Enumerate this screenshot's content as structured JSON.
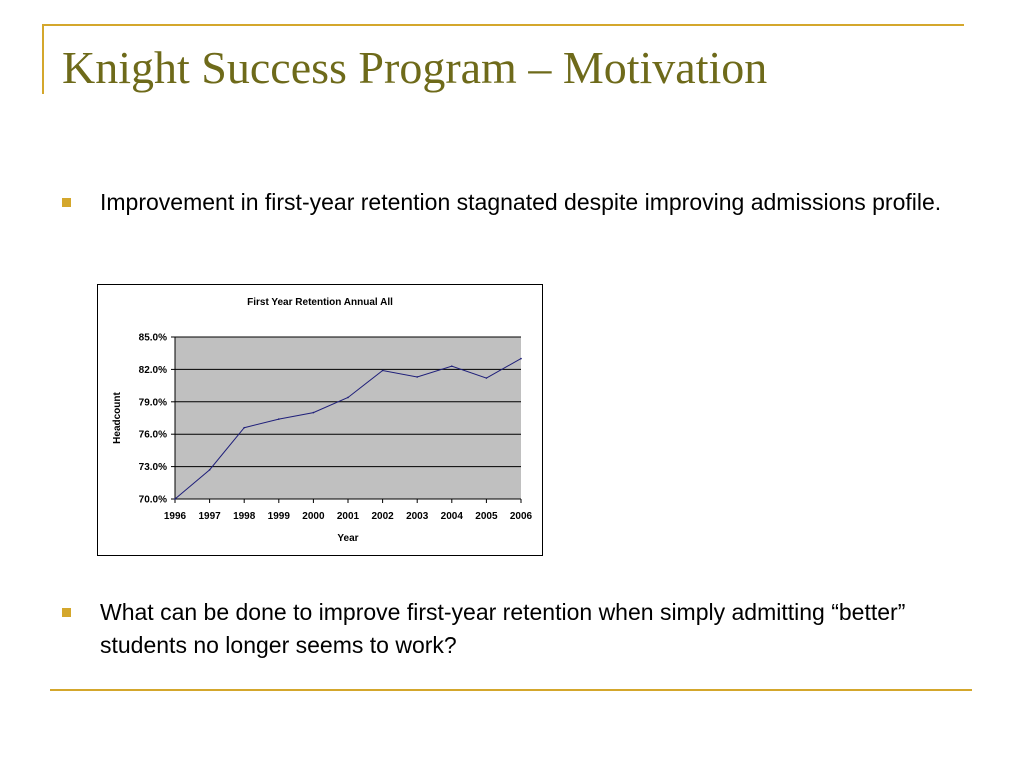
{
  "slide": {
    "title": "Knight Success Program – Motivation",
    "bullets": [
      "Improvement in first-year retention stagnated despite improving admissions profile.",
      "What can be done to improve first-year retention when simply admitting “better” students no longer seems to work?"
    ],
    "accent_color": "#d4a72c",
    "title_color": "#6e6a1a"
  },
  "chart_data": {
    "type": "line",
    "title": "First Year Retention Annual All",
    "xlabel": "Year",
    "ylabel": "Headcount",
    "categories": [
      "1996",
      "1997",
      "1998",
      "1999",
      "2000",
      "2001",
      "2002",
      "2003",
      "2004",
      "2005",
      "2006"
    ],
    "series": [
      {
        "values": [
          70.0,
          72.7,
          76.6,
          77.4,
          78.0,
          79.4,
          81.9,
          81.3,
          82.3,
          81.2,
          83.0
        ]
      }
    ],
    "yticks": [
      "70.0%",
      "73.0%",
      "76.0%",
      "79.0%",
      "82.0%",
      "85.0%"
    ],
    "ylim": [
      70,
      85
    ],
    "grid": true,
    "plot_background": "#c0c0c0",
    "line_color": "#1f1f7a"
  }
}
